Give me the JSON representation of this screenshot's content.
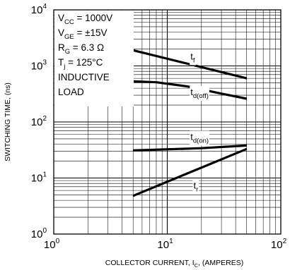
{
  "chart_data": {
    "type": "line",
    "xscale": "log",
    "yscale": "log",
    "xlim": [
      1,
      100
    ],
    "ylim": [
      1,
      10000
    ],
    "grid": true,
    "xlabel": {
      "main": "COLLECTOR CURRENT, I",
      "sub": "C",
      "suffix": ", (AMPERES)"
    },
    "ylabel": "SWITCHING TIME, (ns)",
    "x_ticks": [
      {
        "value": 1,
        "base": "10",
        "exp": "0"
      },
      {
        "value": 10,
        "base": "10",
        "exp": "1"
      },
      {
        "value": 100,
        "base": "10",
        "exp": "2"
      }
    ],
    "y_ticks": [
      {
        "value": 1,
        "base": "10",
        "exp": "0"
      },
      {
        "value": 10,
        "base": "10",
        "exp": "1"
      },
      {
        "value": 100,
        "base": "10",
        "exp": "2"
      },
      {
        "value": 1000,
        "base": "10",
        "exp": "3"
      },
      {
        "value": 10000,
        "base": "10",
        "exp": "4"
      }
    ],
    "conditions": [
      {
        "main": "V",
        "sub": "CC",
        "rest": " = 1000V"
      },
      {
        "main": "V",
        "sub": "GE",
        "rest": " = ±15V"
      },
      {
        "main": "R",
        "sub": "G",
        "rest": " = 6.3 Ω"
      },
      {
        "main": "T",
        "sub": "j",
        "rest": " = 125°C"
      },
      {
        "main": "INDUCTIVE",
        "sub": "",
        "rest": ""
      },
      {
        "main": "LOAD",
        "sub": "",
        "rest": ""
      }
    ],
    "series": [
      {
        "name": "t_f",
        "label_main": "t",
        "label_sub": "f",
        "label_at": [
          16,
          1300
        ],
        "points": [
          [
            5,
            1900
          ],
          [
            50,
            600
          ]
        ]
      },
      {
        "name": "t_d(off)",
        "label_main": "t",
        "label_sub": "d(off)",
        "label_at": [
          16,
          300
        ],
        "points": [
          [
            5,
            530
          ],
          [
            8,
            510
          ],
          [
            15,
            430
          ],
          [
            30,
            320
          ],
          [
            50,
            260
          ]
        ]
      },
      {
        "name": "t_d(on)",
        "label_main": "t",
        "label_sub": "d(on)",
        "label_at": [
          16,
          48
        ],
        "points": [
          [
            5,
            31
          ],
          [
            20,
            34
          ],
          [
            50,
            38
          ]
        ]
      },
      {
        "name": "t_r",
        "label_main": "t",
        "label_sub": "r",
        "label_at": [
          17,
          6.5
        ],
        "points": [
          [
            5,
            4.8
          ],
          [
            50,
            33
          ]
        ]
      }
    ]
  }
}
